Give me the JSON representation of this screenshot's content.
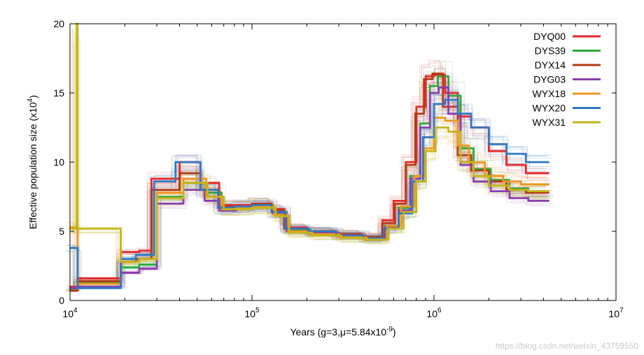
{
  "chart_data": {
    "type": "line",
    "step": true,
    "xscale": "log",
    "xlim": [
      10000,
      10000000
    ],
    "ylim": [
      0,
      20
    ],
    "xlabel": "Years (g=3,μ=5.84x10",
    "xlabel_exp": "-9",
    "xlabel_close": ")",
    "ylabel": "Effective population size (x10",
    "ylabel_exp": "4",
    "ylabel_close": ")",
    "x_ticks": [
      {
        "base": "10",
        "exp": "4",
        "value": 10000
      },
      {
        "base": "10",
        "exp": "5",
        "value": 100000
      },
      {
        "base": "10",
        "exp": "6",
        "value": 1000000
      },
      {
        "base": "10",
        "exp": "7",
        "value": 10000000
      }
    ],
    "y_ticks": [
      0,
      5,
      10,
      15,
      20
    ],
    "legend_position": "top-right",
    "series": [
      {
        "name": "DYQ00",
        "color": "#e32b2b",
        "x": [
          10000,
          11000,
          19000,
          24000,
          28000,
          40000,
          52000,
          66000,
          80000,
          100000,
          128000,
          150000,
          200000,
          280000,
          400000,
          520000,
          600000,
          700000,
          800000,
          900000,
          1000000,
          1150000,
          1350000,
          1600000,
          2000000,
          2500000,
          3200000,
          4300000
        ],
        "y": [
          1.0,
          1.6,
          3.5,
          3.6,
          8.8,
          10.0,
          8.5,
          6.9,
          6.9,
          7.0,
          6.6,
          5.3,
          5.0,
          4.8,
          4.6,
          5.8,
          7.2,
          10.0,
          14.0,
          16.2,
          16.3,
          15.0,
          13.3,
          12.5,
          10.8,
          9.8,
          9.2,
          9.2
        ]
      },
      {
        "name": "DYS39",
        "color": "#2eaa3c",
        "x": [
          10000,
          11000,
          19000,
          24000,
          30000,
          42000,
          56000,
          68000,
          82000,
          100000,
          130000,
          155000,
          210000,
          300000,
          420000,
          540000,
          640000,
          740000,
          840000,
          950000,
          1050000,
          1200000,
          1400000,
          1650000,
          2050000,
          2600000,
          3300000,
          4300000
        ],
        "y": [
          0.8,
          1.3,
          2.4,
          2.6,
          7.5,
          8.5,
          7.8,
          6.7,
          6.8,
          6.9,
          6.4,
          5.1,
          4.9,
          4.7,
          4.5,
          5.4,
          6.7,
          9.0,
          12.8,
          15.5,
          16.2,
          14.8,
          11.0,
          9.5,
          8.7,
          8.1,
          7.8,
          7.8
        ]
      },
      {
        "name": "DYX14",
        "color": "#b53a16",
        "x": [
          10000,
          11000,
          19000,
          23000,
          28000,
          40000,
          52000,
          65000,
          80000,
          100000,
          128000,
          150000,
          200000,
          280000,
          400000,
          520000,
          610000,
          700000,
          790000,
          880000,
          980000,
          1120000,
          1350000,
          1600000,
          2000000,
          2500000,
          3200000,
          4300000
        ],
        "y": [
          0.7,
          1.4,
          2.8,
          3.0,
          8.0,
          9.2,
          8.0,
          6.8,
          6.8,
          7.0,
          6.5,
          5.2,
          5.0,
          4.8,
          4.6,
          5.6,
          7.0,
          9.8,
          13.5,
          16.0,
          16.4,
          14.0,
          10.5,
          9.4,
          8.6,
          8.0,
          7.8,
          7.8
        ]
      },
      {
        "name": "DYG03",
        "color": "#8a3db0",
        "x": [
          10000,
          11000,
          19000,
          24000,
          30000,
          42000,
          55000,
          66000,
          82000,
          100000,
          130000,
          155000,
          210000,
          300000,
          420000,
          540000,
          640000,
          740000,
          840000,
          950000,
          1060000,
          1200000,
          1400000,
          1650000,
          2050000,
          2600000,
          3300000,
          4300000
        ],
        "y": [
          0.9,
          1.0,
          2.0,
          2.3,
          7.0,
          8.0,
          7.2,
          6.5,
          6.7,
          6.8,
          6.3,
          5.0,
          4.9,
          4.7,
          4.5,
          5.3,
          6.5,
          8.8,
          12.5,
          15.0,
          15.4,
          13.5,
          9.8,
          8.6,
          7.9,
          7.4,
          7.2,
          7.2
        ]
      },
      {
        "name": "WYX18",
        "color": "#f2961c",
        "x": [
          10000,
          11000,
          19000,
          24000,
          30000,
          42000,
          56000,
          68000,
          82000,
          100000,
          132000,
          158000,
          210000,
          300000,
          420000,
          550000,
          660000,
          780000,
          880000,
          1000000,
          1150000,
          1350000,
          1550000,
          1900000,
          2400000,
          3000000,
          4300000
        ],
        "y": [
          5.3,
          1.2,
          2.8,
          3.0,
          7.8,
          8.8,
          7.5,
          6.6,
          6.7,
          6.8,
          6.2,
          5.0,
          4.8,
          4.6,
          4.4,
          5.4,
          6.8,
          9.0,
          11.0,
          13.2,
          13.0,
          11.2,
          10.0,
          9.0,
          8.6,
          8.4,
          8.4
        ]
      },
      {
        "name": "WYX20",
        "color": "#2f78c4",
        "x": [
          10000,
          11000,
          19000,
          23000,
          29000,
          38000,
          52000,
          65000,
          80000,
          100000,
          128000,
          152000,
          205000,
          290000,
          410000,
          530000,
          640000,
          760000,
          870000,
          1000000,
          1150000,
          1350000,
          1600000,
          2000000,
          2500000,
          3200000,
          4300000
        ],
        "y": [
          3.8,
          0.9,
          3.0,
          3.3,
          8.6,
          10.0,
          8.0,
          6.7,
          6.8,
          6.9,
          6.4,
          5.2,
          5.0,
          4.7,
          4.5,
          5.2,
          6.3,
          8.6,
          11.8,
          14.2,
          14.5,
          13.5,
          12.5,
          11.3,
          10.6,
          10.0,
          10.0
        ]
      },
      {
        "name": "WYX31",
        "color": "#c4b51a",
        "x": [
          10000,
          10900,
          11000,
          19000,
          24000,
          30000,
          42000,
          57000,
          70000,
          85000,
          100000,
          135000,
          160000,
          215000,
          310000,
          430000,
          560000,
          680000,
          800000,
          900000,
          1020000,
          1200000,
          1400000,
          1650000,
          2000000,
          2600000,
          3300000,
          4300000
        ],
        "y": [
          5.2,
          20.0,
          5.2,
          2.8,
          3.0,
          7.4,
          8.5,
          7.5,
          6.6,
          6.6,
          6.7,
          6.1,
          4.9,
          4.7,
          4.5,
          4.4,
          5.2,
          6.4,
          8.6,
          10.8,
          12.5,
          12.2,
          10.0,
          9.0,
          8.3,
          8.0,
          7.9,
          7.9
        ]
      }
    ],
    "bootstrap_shading": true
  },
  "watermark": "https://blog.csdn.net/weixin_43759550"
}
